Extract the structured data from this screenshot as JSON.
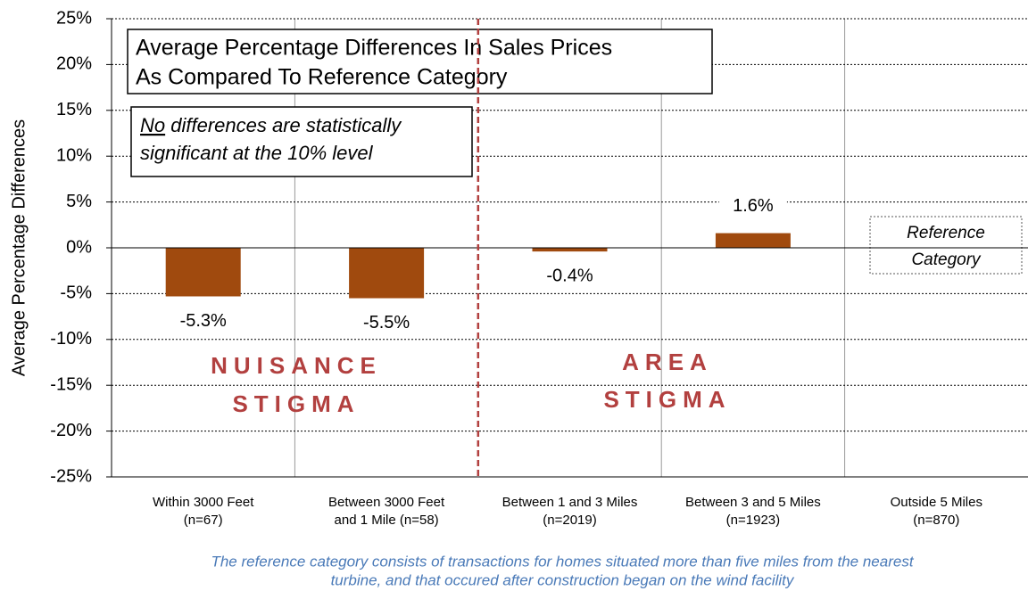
{
  "chart_data": {
    "type": "bar",
    "title": [
      "Average Percentage Differences In Sales Prices",
      "As Compared To Reference Category"
    ],
    "note": [
      "No",
      " differences are statistically",
      "significant at the 10% level"
    ],
    "y_label": "Average Percentage Differences",
    "categories": [
      [
        "Within 3000 Feet",
        "(n=67)"
      ],
      [
        "Between 3000 Feet",
        "and 1 Mile (n=58)"
      ],
      [
        "Between 1 and 3 Miles",
        "(n=2019)"
      ],
      [
        "Between 3 and 5 Miles",
        "(n=1923)"
      ],
      [
        "Outside 5 Miles",
        "(n=870)"
      ]
    ],
    "values": [
      -5.3,
      -5.5,
      -0.4,
      1.6,
      null
    ],
    "value_labels": [
      "-5.3%",
      "-5.5%",
      "-0.4%",
      "1.6%",
      null
    ],
    "color": "#a04a0e",
    "ylim": [
      -25,
      25
    ],
    "yticks": [
      {
        "value": -25,
        "label": "-25%"
      },
      {
        "value": -20,
        "label": "-20%"
      },
      {
        "value": -15,
        "label": "-15%"
      },
      {
        "value": -10,
        "label": "-10%"
      },
      {
        "value": -5,
        "label": "-5%"
      },
      {
        "value": 0,
        "label": "0%"
      },
      {
        "value": 5,
        "label": "5%"
      },
      {
        "value": 10,
        "label": "10%"
      },
      {
        "value": 15,
        "label": "15%"
      },
      {
        "value": 20,
        "label": "20%"
      },
      {
        "value": 25,
        "label": "25%"
      }
    ],
    "grid": true,
    "regions": [
      [
        "NUISANCE",
        "STIGMA"
      ],
      [
        "AREA",
        "STIGMA"
      ]
    ],
    "reference_label": [
      "Reference",
      "Category"
    ],
    "footnote": [
      "The reference category consists of transactions for homes situated more than five miles from the nearest",
      "turbine, and that occured after construction began on the wind facility"
    ]
  }
}
